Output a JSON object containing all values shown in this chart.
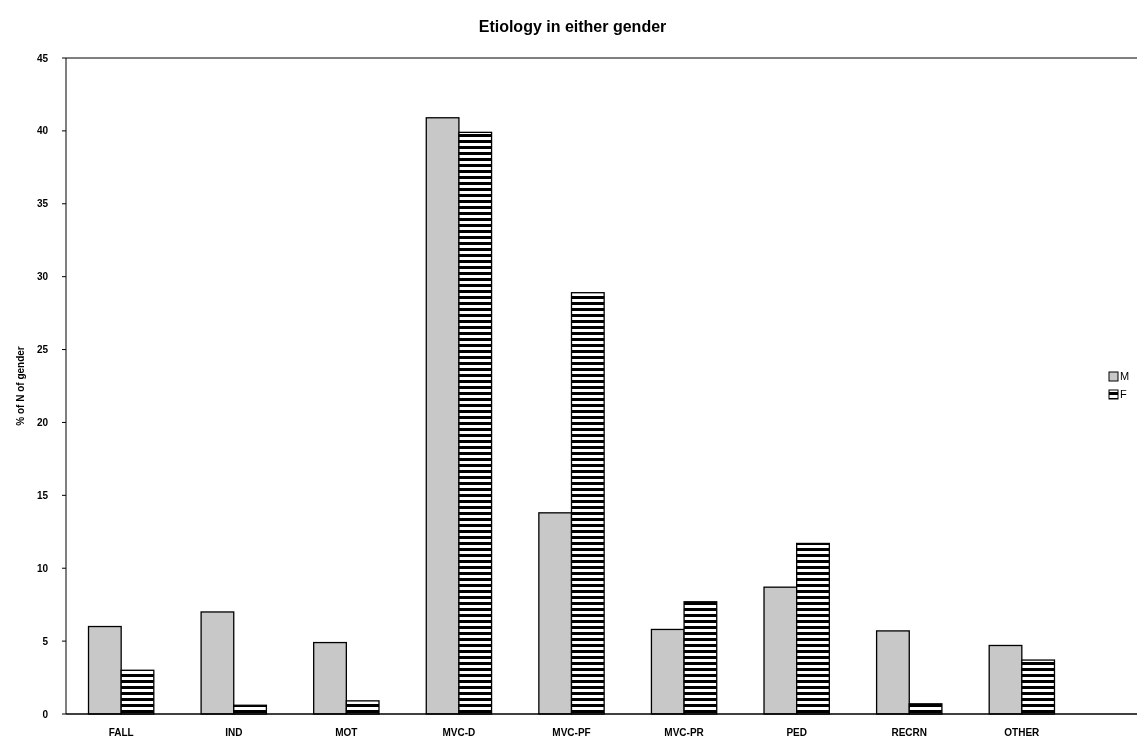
{
  "chart_data": {
    "type": "bar",
    "title": "Etiology in either gender",
    "ylabel": "% of N of gender",
    "categories": [
      "FALL",
      "IND",
      "MOT",
      "MVC-D",
      "MVC-PF",
      "MVC-PR",
      "PED",
      "RECRN",
      "OTHER"
    ],
    "series": [
      {
        "name": "M",
        "color": "#c8c8c8",
        "values": [
          6,
          7,
          4.9,
          40.9,
          13.8,
          5.8,
          8.7,
          5.7,
          4.7
        ]
      },
      {
        "name": "F",
        "color": "#000000",
        "values": [
          3,
          0.6,
          0.9,
          39.9,
          28.9,
          7.7,
          11.7,
          0.7,
          3.7
        ]
      }
    ],
    "ylim": [
      0,
      45
    ],
    "yticks": [
      0,
      5,
      10,
      15,
      20,
      25,
      30,
      35,
      40,
      45
    ],
    "grid": false,
    "legend": "right"
  }
}
